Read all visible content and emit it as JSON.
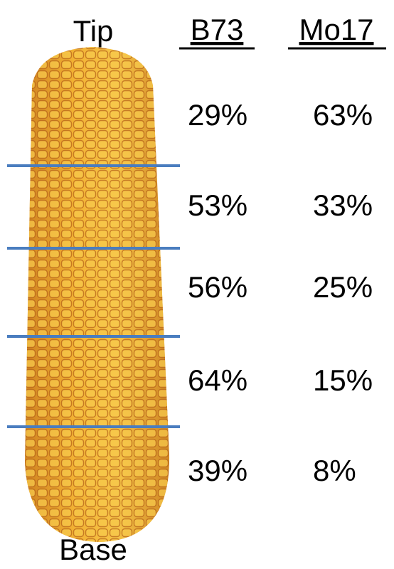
{
  "labels": {
    "tip": "Tip",
    "base": "Base"
  },
  "table": {
    "headers": [
      "B73",
      "Mo17"
    ],
    "rows": [
      [
        "29%",
        "63%"
      ],
      [
        "53%",
        "33%"
      ],
      [
        "56%",
        "25%"
      ],
      [
        "64%",
        "15%"
      ],
      [
        "39%",
        "8%"
      ]
    ]
  }
}
